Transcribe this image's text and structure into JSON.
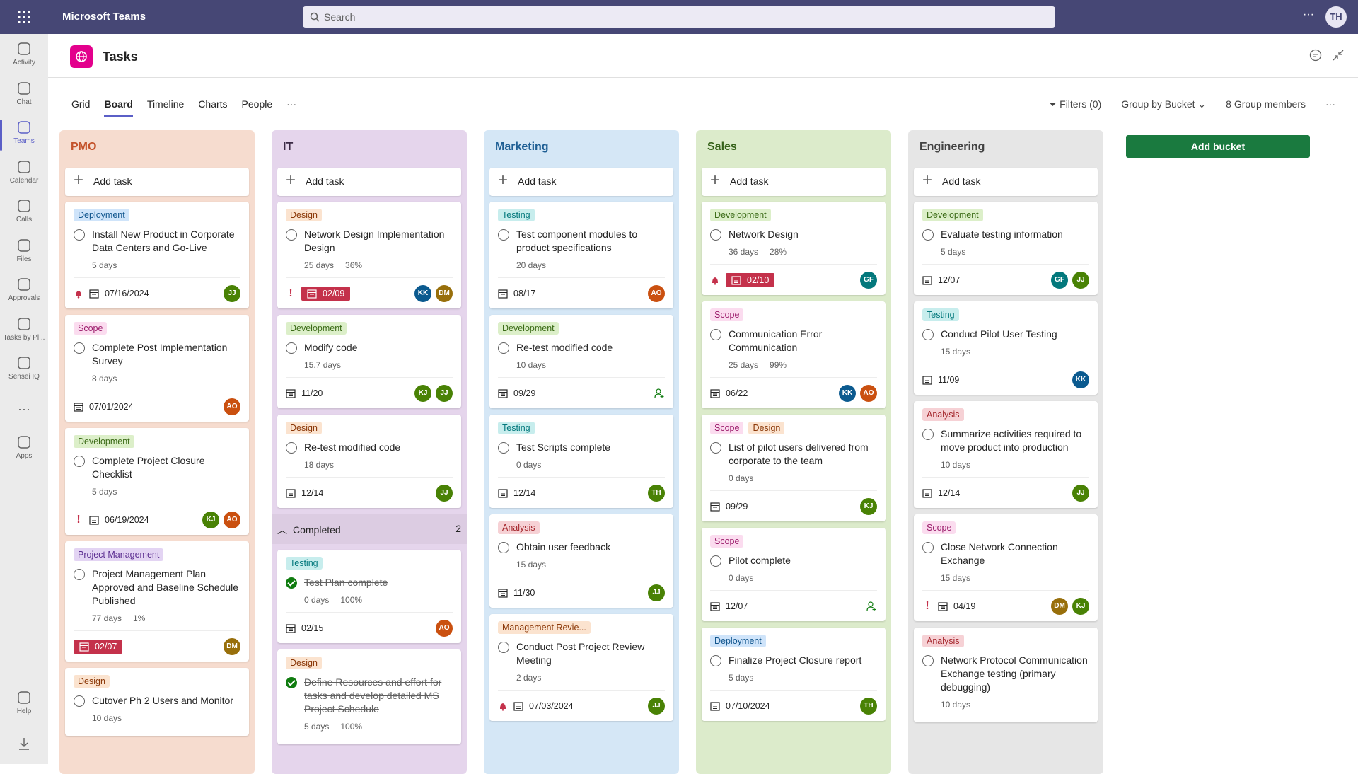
{
  "app": {
    "title": "Microsoft Teams",
    "search": "Search",
    "avatar": "TH"
  },
  "rail": {
    "items": [
      "Activity",
      "Chat",
      "Teams",
      "Calendar",
      "Calls",
      "Files",
      "Approvals",
      "Tasks by Pl...",
      "Sensei IQ"
    ],
    "selected": 2,
    "apps": "Apps",
    "help": "Help"
  },
  "header": {
    "title": "Tasks"
  },
  "tabs": {
    "items": [
      "Grid",
      "Board",
      "Timeline",
      "Charts",
      "People"
    ],
    "selected": 1
  },
  "toolbar": {
    "filters": "Filters (0)",
    "group_by": "Group by Bucket",
    "members": "8 Group members"
  },
  "add_bucket": "Add bucket",
  "add_task": "Add task",
  "avatar_colors": {
    "JJ": "#498205",
    "AO": "#ca5010",
    "KJ": "#498205",
    "DM": "#986f0b",
    "KK": "#0b5a8f",
    "GF": "#03787c",
    "TH": "#498205"
  },
  "buckets": [
    {
      "name": "PMO",
      "color": "#f6dccf",
      "text_color": "#c4532b",
      "tasks": [
        {
          "labels": [
            {
              "text": "Deployment",
              "color": "blue"
            }
          ],
          "title": "Install New Product in Corporate Data Centers and Go-Live",
          "duration": "5 days",
          "flag": "bell",
          "due": "07/16/2024",
          "assignees": [
            "JJ"
          ]
        },
        {
          "labels": [
            {
              "text": "Scope",
              "color": "pink"
            }
          ],
          "title": "Complete Post Implementation Survey",
          "duration": "8 days",
          "due": "07/01/2024",
          "assignees": [
            "AO"
          ]
        },
        {
          "labels": [
            {
              "text": "Development",
              "color": "green"
            }
          ],
          "title": "Complete Project Closure Checklist",
          "duration": "5 days",
          "flag": "important",
          "due": "06/19/2024",
          "assignees": [
            "KJ",
            "AO"
          ]
        },
        {
          "labels": [
            {
              "text": "Project Management",
              "color": "purple"
            }
          ],
          "title": "Project Management Plan Approved and Baseline Schedule Published",
          "duration": "77 days",
          "progress": "1%",
          "due": "02/07",
          "overdue": true,
          "assignees": [
            "DM"
          ]
        },
        {
          "labels": [
            {
              "text": "Design",
              "color": "orange"
            }
          ],
          "title": "Cutover Ph 2 Users and Monitor",
          "duration": "10 days",
          "assignees": []
        }
      ]
    },
    {
      "name": "IT",
      "color": "#e5d5ec",
      "text_color": "#3b2a45",
      "tasks": [
        {
          "labels": [
            {
              "text": "Design",
              "color": "orange"
            }
          ],
          "title": "Network Design Implementation Design",
          "duration": "25 days",
          "progress": "36%",
          "flag": "important",
          "due": "02/09",
          "overdue": true,
          "assignees": [
            "KK",
            "DM"
          ]
        },
        {
          "labels": [
            {
              "text": "Development",
              "color": "green"
            }
          ],
          "title": "Modify code",
          "duration": "15.7 days",
          "due": "11/20",
          "assignees": [
            "KJ",
            "JJ"
          ]
        },
        {
          "labels": [
            {
              "text": "Design",
              "color": "orange"
            }
          ],
          "title": "Re-test modified code",
          "duration": "18 days",
          "due": "12/14",
          "assignees": [
            "JJ"
          ]
        }
      ],
      "completed": {
        "label": "Completed",
        "count": 2,
        "tasks": [
          {
            "labels": [
              {
                "text": "Testing",
                "color": "teal"
              }
            ],
            "title": "Test Plan complete",
            "done": true,
            "duration": "0 days",
            "progress": "100%",
            "due": "02/15",
            "assignees": [
              "AO"
            ]
          },
          {
            "labels": [
              {
                "text": "Design",
                "color": "orange"
              }
            ],
            "title": "Define Resources and effort for tasks and develop detailed MS Project Schedule",
            "done": true,
            "duration": "5 days",
            "progress": "100%",
            "assignees": []
          }
        ]
      }
    },
    {
      "name": "Marketing",
      "color": "#d5e7f6",
      "text_color": "#1f5f94",
      "tasks": [
        {
          "labels": [
            {
              "text": "Testing",
              "color": "teal"
            }
          ],
          "title": "Test component modules to product specifications",
          "duration": "20 days",
          "due": "08/17",
          "assignees": [
            "AO"
          ]
        },
        {
          "labels": [
            {
              "text": "Development",
              "color": "green"
            }
          ],
          "title": "Re-test modified code",
          "duration": "10 days",
          "due": "09/29",
          "assignees": []
        },
        {
          "labels": [
            {
              "text": "Testing",
              "color": "teal"
            }
          ],
          "title": "Test Scripts complete",
          "duration": "0 days",
          "due": "12/14",
          "assignees": [
            "TH"
          ]
        },
        {
          "labels": [
            {
              "text": "Analysis",
              "color": "red"
            }
          ],
          "title": "Obtain user feedback",
          "duration": "15 days",
          "due": "11/30",
          "assignees": [
            "JJ"
          ]
        },
        {
          "labels": [
            {
              "text": "Management Revie...",
              "color": "orange"
            }
          ],
          "title": "Conduct Post Project Review Meeting",
          "duration": "2 days",
          "flag": "bell",
          "due": "07/03/2024",
          "assignees": [
            "JJ"
          ]
        }
      ]
    },
    {
      "name": "Sales",
      "color": "#dcebcb",
      "text_color": "#36621a",
      "tasks": [
        {
          "labels": [
            {
              "text": "Development",
              "color": "green"
            }
          ],
          "title": "Network Design",
          "duration": "36 days",
          "progress": "28%",
          "flag": "bell",
          "due": "02/10",
          "overdue": true,
          "assignees": [
            "GF"
          ]
        },
        {
          "labels": [
            {
              "text": "Scope",
              "color": "pink"
            }
          ],
          "title": "Communication Error Communication",
          "duration": "25 days",
          "progress": "99%",
          "due": "06/22",
          "assignees": [
            "KK",
            "AO"
          ]
        },
        {
          "labels": [
            {
              "text": "Scope",
              "color": "pink"
            },
            {
              "text": "Design",
              "color": "orange"
            }
          ],
          "title": "List of pilot users delivered from corporate to the team",
          "duration": "0 days",
          "due": "09/29",
          "assignees": [
            "KJ"
          ]
        },
        {
          "labels": [
            {
              "text": "Scope",
              "color": "pink"
            }
          ],
          "title": "Pilot complete",
          "duration": "0 days",
          "due": "12/07",
          "assignees": []
        },
        {
          "labels": [
            {
              "text": "Deployment",
              "color": "blue"
            }
          ],
          "title": "Finalize Project Closure report",
          "duration": "5 days",
          "due": "07/10/2024",
          "assignees": [
            "TH"
          ]
        }
      ]
    },
    {
      "name": "Engineering",
      "color": "#e6e6e6",
      "text_color": "#424242",
      "tasks": [
        {
          "labels": [
            {
              "text": "Development",
              "color": "green"
            }
          ],
          "title": "Evaluate testing information",
          "duration": "5 days",
          "due": "12/07",
          "assignees": [
            "GF",
            "JJ"
          ]
        },
        {
          "labels": [
            {
              "text": "Testing",
              "color": "teal"
            }
          ],
          "title": "Conduct Pilot User Testing",
          "duration": "15 days",
          "due": "11/09",
          "assignees": [
            "KK"
          ]
        },
        {
          "labels": [
            {
              "text": "Analysis",
              "color": "red"
            }
          ],
          "title": "Summarize activities required to move product into production",
          "duration": "10 days",
          "due": "12/14",
          "assignees": [
            "JJ"
          ]
        },
        {
          "labels": [
            {
              "text": "Scope",
              "color": "pink"
            }
          ],
          "title": "Close Network Connection Exchange",
          "duration": "15 days",
          "flag": "important",
          "due": "04/19",
          "assignees": [
            "DM",
            "KJ"
          ]
        },
        {
          "labels": [
            {
              "text": "Analysis",
              "color": "red"
            }
          ],
          "title": "Network Protocol Communication Exchange testing (primary debugging)",
          "duration": "10 days",
          "assignees": []
        }
      ]
    }
  ]
}
